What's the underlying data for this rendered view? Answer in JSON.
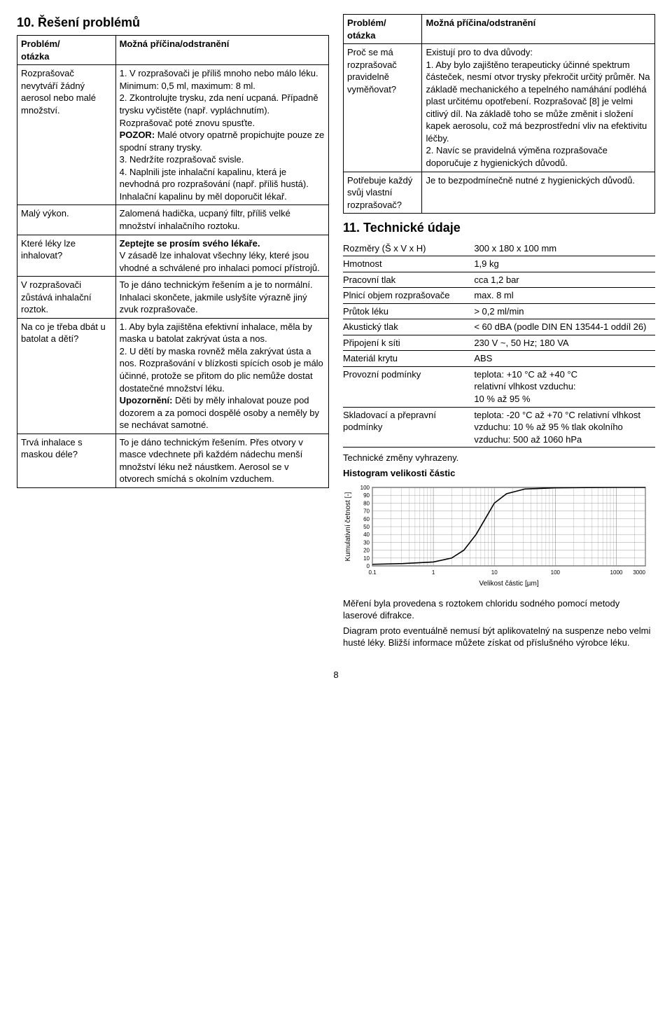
{
  "section10": {
    "title": "10. Řešení problémů",
    "header_problem": "Problém/\notázka",
    "header_cause": "Možná příčina/odstranění",
    "rows_left": [
      {
        "problem": "Rozprašovač nevytváří žádný aerosol nebo malé množství.",
        "cause": "1. V rozprašovači je příliš mnoho nebo málo léku.\nMinimum: 0,5 ml, maximum: 8 ml.\n2. Zkontrolujte trysku, zda není ucpaná. Případně trysku vyčistěte (např. vypláchnutím). Rozprašovač poté znovu spusťte.\n<b>POZOR:</b> Malé otvory opatrně propichujte pouze ze spodní strany trysky.\n3. Nedržíte rozprašovač svisle.\n4. Naplnili jste inhalační kapalinu, která je nevhodná pro rozprašování (např. příliš hustá).\nInhalační kapalinu by měl doporučit lékař."
      },
      {
        "problem": "Malý výkon.",
        "cause": "Zalomená hadička, ucpaný filtr, příliš velké množství inhalačního roztoku."
      },
      {
        "problem": "Které léky lze inhalovat?",
        "cause": "<b>Zeptejte se prosím svého lékaře.</b>\nV zásadě lze inhalovat všechny léky, které jsou vhodné a schválené pro inhalaci pomocí přístrojů."
      },
      {
        "problem": "V rozprašovači zůstává inhalační roztok.",
        "cause": "To je dáno technickým řešením a je to normální. Inhalaci skončete, jakmile uslyšíte výrazně jiný zvuk rozprašovače."
      },
      {
        "problem": "Na co je třeba dbát u batolat a dětí?",
        "cause": "1. Aby byla zajištěna efektivní inhalace, měla by maska u batolat zakrývat ústa a nos.\n2. U dětí by maska rovněž měla zakrývat ústa a nos. Rozprašování v blízkosti spících osob je málo účinné, protože se přitom do plic nemůže dostat dostatečné množství léku.\n<b>Upozornění:</b> Děti by měly inhalovat pouze pod dozorem a za pomoci dospělé osoby a neměly by se nechávat samotné."
      },
      {
        "problem": "Trvá inhalace s maskou déle?",
        "cause": "To je dáno technickým řešením. Přes otvory v masce vdechnete při každém nádechu menší množství léku než náustkem. Aerosol se v otvorech smíchá s okolním vzduchem."
      }
    ],
    "rows_right": [
      {
        "problem": "Proč se má rozprašovač pravidelně vyměňovat?",
        "cause": "Existují pro to dva důvody:\n1. Aby bylo zajištěno terapeuticky účinné spektrum částeček, nesmí otvor trysky překročit určitý průměr. Na základě mechanického a tepelného namáhání podléhá plast určitému opotřebení. Rozprašovač [8] je velmi citlivý díl. Na základě toho se může změnit i složení kapek aerosolu, což má bezprostřední vliv na efektivitu léčby.\n2. Navíc se pravidelná výměna rozprašovače doporučuje z hygienických důvodů."
      },
      {
        "problem": "Potřebuje každý svůj vlastní rozprašovač?",
        "cause": "Je to bezpodmínečně nutné z hygienických důvodů."
      }
    ]
  },
  "section11": {
    "title": "11. Technické údaje",
    "specs": [
      {
        "label": "Rozměry (Š x V x H)",
        "value": "300 x 180 x 100 mm"
      },
      {
        "label": "Hmotnost",
        "value": "1,9 kg"
      },
      {
        "label": "Pracovní tlak",
        "value": "cca 1,2 bar"
      },
      {
        "label": "Plnicí objem rozprašovače",
        "value": "max. 8 ml"
      },
      {
        "label": "Průtok léku",
        "value": "> 0,2 ml/min"
      },
      {
        "label": "Akustický tlak",
        "value": "< 60 dBA (podle DIN EN 13544-1 oddíl 26)"
      },
      {
        "label": "Připojení k síti",
        "value": "230 V ~, 50 Hz; 180 VA"
      },
      {
        "label": "Materiál krytu",
        "value": "ABS"
      },
      {
        "label": "Provozní podmínky",
        "value": "teplota: +10 °C až +40 °C\nrelativní vlhkost vzduchu:\n10 % až 95 %"
      },
      {
        "label": "Skladovací a přepravní podmínky",
        "value": "teplota: -20 °C až +70 °C relativní vlhkost vzduchu: 10 % až 95 % tlak okolního vzduchu: 500 až 1060 hPa"
      }
    ],
    "note": "Technické změny vyhrazeny.",
    "chart_title": "Histogram velikosti částic",
    "chart": {
      "type": "line-log",
      "xlabel": "Velikost částic [µm]",
      "ylabel": "Kumulativní četnost [-]",
      "x_ticks": [
        "0.1",
        "1",
        "10",
        "100",
        "1000",
        "3000"
      ],
      "y_ticks": [
        0,
        10,
        20,
        30,
        40,
        50,
        60,
        70,
        80,
        90,
        100
      ],
      "xlim_log": [
        -1,
        3.477
      ],
      "ylim": [
        0,
        100
      ],
      "line_color": "#000000",
      "grid_color": "#888888",
      "background": "#ffffff",
      "curve": [
        [
          -1,
          2
        ],
        [
          -0.5,
          3
        ],
        [
          0,
          5
        ],
        [
          0.3,
          10
        ],
        [
          0.5,
          20
        ],
        [
          0.7,
          40
        ],
        [
          0.85,
          60
        ],
        [
          1.0,
          80
        ],
        [
          1.2,
          92
        ],
        [
          1.5,
          98
        ],
        [
          2.0,
          99.5
        ],
        [
          2.5,
          99.8
        ],
        [
          3.0,
          100
        ],
        [
          3.477,
          100
        ]
      ]
    },
    "after_chart": [
      "Měření byla provedena s roztokem chloridu sodného pomocí metody laserové difrakce.",
      "Diagram proto eventuálně nemusí být aplikovatelný na suspenze nebo velmi husté léky. Bližší informace můžete získat od příslušného výrobce léku."
    ]
  },
  "page_number": "8"
}
